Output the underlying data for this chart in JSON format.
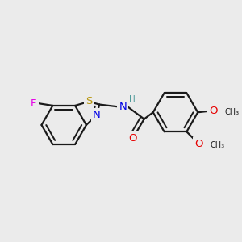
{
  "background_color": "#ebebeb",
  "bond_color": "#1a1a1a",
  "atom_colors": {
    "F": "#e600e6",
    "S": "#b8960c",
    "N": "#0000e6",
    "O": "#e60000",
    "H": "#4d9999",
    "C": "#1a1a1a"
  },
  "figsize": [
    3.0,
    3.0
  ],
  "dpi": 100,
  "lw": 1.6,
  "fontsize": 9.5
}
